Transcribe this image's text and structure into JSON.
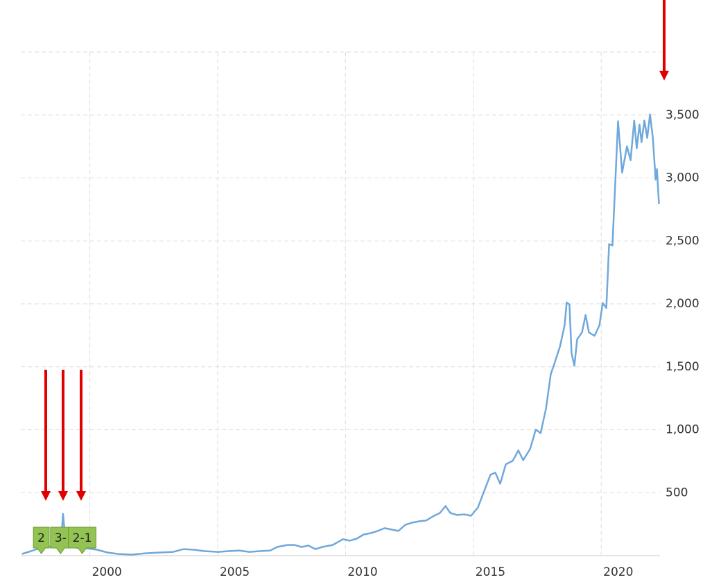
{
  "chart_data": {
    "type": "line",
    "color": "#6fa8dc",
    "x": [
      1997.35,
      1997.7,
      1998.1,
      1998.5,
      1998.87,
      1998.95,
      1999.06,
      1999.47,
      1999.87,
      2000.28,
      2000.69,
      2001.09,
      2001.64,
      2002.18,
      2002.72,
      2003.26,
      2003.67,
      2004.08,
      2004.48,
      2005.02,
      2005.43,
      2005.84,
      2006.24,
      2006.65,
      2007.06,
      2007.33,
      2007.73,
      2008.0,
      2008.28,
      2008.55,
      2008.82,
      2009.09,
      2009.5,
      2009.9,
      2010.17,
      2010.44,
      2010.71,
      2010.99,
      2011.26,
      2011.53,
      2011.8,
      2012.07,
      2012.34,
      2012.61,
      2012.88,
      2013.15,
      2013.42,
      2013.69,
      2013.91,
      2014.1,
      2014.37,
      2014.64,
      2014.91,
      2015.18,
      2015.46,
      2015.67,
      2015.86,
      2016.05,
      2016.27,
      2016.54,
      2016.76,
      2016.95,
      2017.22,
      2017.44,
      2017.63,
      2017.84,
      2018.03,
      2018.17,
      2018.39,
      2018.57,
      2018.65,
      2018.76,
      2018.84,
      2018.95,
      2019.06,
      2019.25,
      2019.39,
      2019.52,
      2019.74,
      2019.93,
      2020.06,
      2020.2,
      2020.31,
      2020.44,
      2020.66,
      2020.82,
      2021.01,
      2021.15,
      2021.29,
      2021.39,
      2021.5,
      2021.58,
      2021.69,
      2021.8,
      2021.91,
      2022.02,
      2022.13,
      2022.18,
      2022.26
    ],
    "values": [
      14,
      36,
      63,
      74,
      91,
      333,
      91,
      63,
      58,
      47,
      25,
      14,
      8,
      19,
      25,
      30,
      52,
      47,
      36,
      30,
      36,
      41,
      30,
      36,
      41,
      69,
      85,
      85,
      69,
      80,
      52,
      69,
      85,
      130,
      119,
      135,
      168,
      179,
      196,
      218,
      207,
      196,
      245,
      262,
      273,
      279,
      312,
      339,
      394,
      339,
      323,
      328,
      317,
      383,
      532,
      643,
      659,
      571,
      725,
      753,
      836,
      758,
      847,
      1001,
      973,
      1166,
      1442,
      1525,
      1663,
      1829,
      2011,
      1994,
      1608,
      1508,
      1718,
      1773,
      1911,
      1773,
      1746,
      1829,
      2006,
      1967,
      2474,
      2463,
      3450,
      3042,
      3251,
      3141,
      3456,
      3235,
      3423,
      3285,
      3456,
      3318,
      3505,
      3318,
      2986,
      3070,
      2794
    ],
    "xlim": [
      1997.3,
      2022.3
    ],
    "xticks": [
      2000,
      2005,
      2010,
      2015,
      2020
    ],
    "ylim": [
      0,
      4000
    ],
    "yticks": [
      {
        "value": 500,
        "label": "500"
      },
      {
        "value": 1000,
        "label": "1,000"
      },
      {
        "value": 1500,
        "label": "1,500"
      },
      {
        "value": 2000,
        "label": "2,000"
      },
      {
        "value": 2500,
        "label": "2,500"
      },
      {
        "value": 3000,
        "label": "3,000"
      },
      {
        "value": 3500,
        "label": "3,500"
      }
    ],
    "grid": true,
    "annotations": [
      {
        "x": 1998.28,
        "label": "2"
      },
      {
        "x": 1998.95,
        "label": "3-"
      },
      {
        "x": 1999.65,
        "label": "2-1"
      }
    ]
  }
}
